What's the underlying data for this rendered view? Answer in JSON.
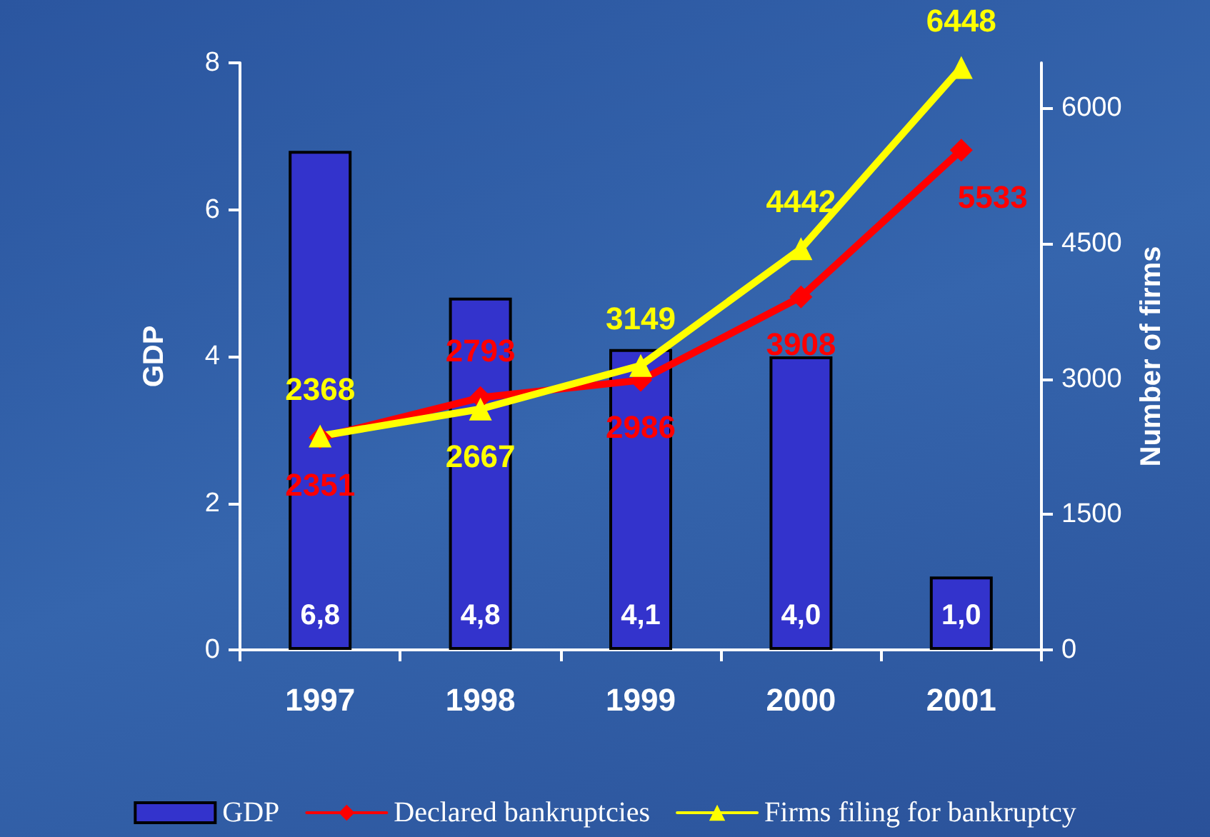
{
  "chart_data": {
    "type": "bar",
    "ylabel": "GDP",
    "y2label": "Number of firms",
    "categories": [
      "1997",
      "1998",
      "1999",
      "2000",
      "2001"
    ],
    "series": [
      {
        "name": "GDP",
        "color": "#3333cc",
        "values": [
          6.8,
          4.8,
          4.1,
          4.0,
          1.0
        ],
        "value_labels": [
          "6,8",
          "4,8",
          "4,1",
          "4,0",
          "1,0"
        ]
      },
      {
        "name": "Declared bankruptcies",
        "type": "line",
        "axis": "y2",
        "color": "#ff0000",
        "marker": "diamond",
        "values": [
          2351,
          2793,
          2986,
          3908,
          5533
        ],
        "value_labels": [
          "2351",
          "2793",
          "2986",
          "3908",
          "5533"
        ]
      },
      {
        "name": "Firms filing for bankruptcy",
        "type": "line",
        "axis": "y2",
        "color": "#ffff00",
        "marker": "triangle",
        "values": [
          2368,
          2667,
          3149,
          4442,
          6448
        ],
        "value_labels": [
          "2368",
          "2667",
          "3149",
          "4442",
          "6448"
        ]
      }
    ],
    "ylim": [
      0,
      8
    ],
    "yticks": [
      0,
      2,
      4,
      6,
      8
    ],
    "y2lim": [
      0,
      6500
    ],
    "y2ticks": [
      0,
      1500,
      3000,
      4500,
      6000
    ],
    "grid": false,
    "legend": "bottom"
  }
}
